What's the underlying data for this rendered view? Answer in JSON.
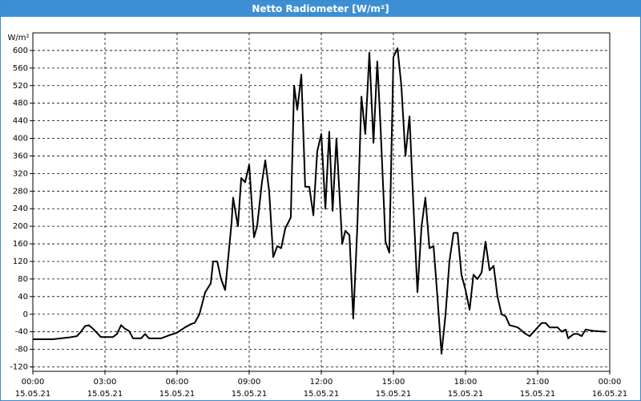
{
  "chart_data": {
    "type": "line",
    "title": "Netto Radiometer [W/m²]",
    "y_label": "W/m²",
    "x": [
      0,
      0.83,
      1.5,
      1.83,
      2,
      2.17,
      2.33,
      2.5,
      2.83,
      3.33,
      3.5,
      3.67,
      3.83,
      4,
      4.17,
      4.5,
      4.67,
      4.83,
      5.33,
      5.67,
      6,
      6.33,
      6.6,
      6.73,
      6.93,
      7.17,
      7.4,
      7.5,
      7.67,
      7.83,
      8,
      8.27,
      8.33,
      8.53,
      8.67,
      8.83,
      9,
      9.2,
      9.33,
      9.53,
      9.67,
      9.83,
      10,
      10.17,
      10.33,
      10.5,
      10.73,
      10.87,
      11,
      11.17,
      11.33,
      11.5,
      11.67,
      11.83,
      12,
      12.17,
      12.33,
      12.47,
      12.63,
      12.87,
      13,
      13.17,
      13.33,
      13.5,
      13.67,
      13.83,
      14,
      14.17,
      14.33,
      14.47,
      14.67,
      14.83,
      15,
      15.17,
      15.33,
      15.5,
      15.67,
      15.83,
      16,
      16.17,
      16.33,
      16.5,
      16.67,
      16.83,
      17,
      17.17,
      17.33,
      17.5,
      17.67,
      17.83,
      18,
      18.17,
      18.33,
      18.5,
      18.67,
      18.83,
      19,
      19.17,
      19.33,
      19.5,
      19.67,
      19.83,
      20.17,
      20.5,
      20.67,
      21,
      21.17,
      21.33,
      21.5,
      21.83,
      22,
      22.17,
      22.27,
      22.5,
      22.67,
      22.83,
      23,
      23.33,
      23.83
    ],
    "series": [
      {
        "name": "Netto Radiometer",
        "color": "#000000",
        "values": [
          -57,
          -57,
          -53,
          -50,
          -40,
          -27,
          -25,
          -33,
          -52,
          -52,
          -45,
          -25,
          -33,
          -38,
          -55,
          -55,
          -45,
          -55,
          -55,
          -48,
          -42,
          -30,
          -22,
          -20,
          0,
          50,
          70,
          120,
          120,
          80,
          55,
          210,
          265,
          200,
          310,
          300,
          340,
          175,
          200,
          300,
          350,
          280,
          130,
          155,
          150,
          195,
          220,
          520,
          465,
          545,
          290,
          290,
          225,
          370,
          410,
          240,
          415,
          235,
          400,
          160,
          190,
          180,
          -10,
          200,
          495,
          410,
          595,
          390,
          575,
          420,
          165,
          140,
          585,
          605,
          520,
          360,
          450,
          250,
          50,
          200,
          265,
          150,
          155,
          40,
          -90,
          0,
          120,
          185,
          185,
          90,
          55,
          10,
          90,
          80,
          95,
          165,
          100,
          110,
          40,
          0,
          -5,
          -25,
          -30,
          -45,
          -50,
          -30,
          -20,
          -20,
          -30,
          -30,
          -40,
          -35,
          -55,
          -45,
          -45,
          -50,
          -35,
          -38,
          -40
        ]
      }
    ],
    "xlim": [
      0,
      24
    ],
    "ylim": [
      -130,
      640
    ],
    "xticks": [
      {
        "value": 0,
        "label": "00:00"
      },
      {
        "value": 3,
        "label": "03:00"
      },
      {
        "value": 6,
        "label": "06:00"
      },
      {
        "value": 9,
        "label": "09:00"
      },
      {
        "value": 12,
        "label": "12:00"
      },
      {
        "value": 15,
        "label": "15:00"
      },
      {
        "value": 18,
        "label": "18:00"
      },
      {
        "value": 21,
        "label": "21:00"
      },
      {
        "value": 24,
        "label": "00:00"
      }
    ],
    "xtick_dates": [
      "15.05.21",
      "15.05.21",
      "15.05.21",
      "15.05.21",
      "15.05.21",
      "15.05.21",
      "15.05.21",
      "15.05.21",
      "16.05.21"
    ],
    "yticks": [
      -120,
      -80,
      -40,
      0,
      40,
      80,
      120,
      160,
      200,
      240,
      280,
      320,
      360,
      400,
      440,
      480,
      520,
      560,
      600
    ],
    "grid": true
  }
}
